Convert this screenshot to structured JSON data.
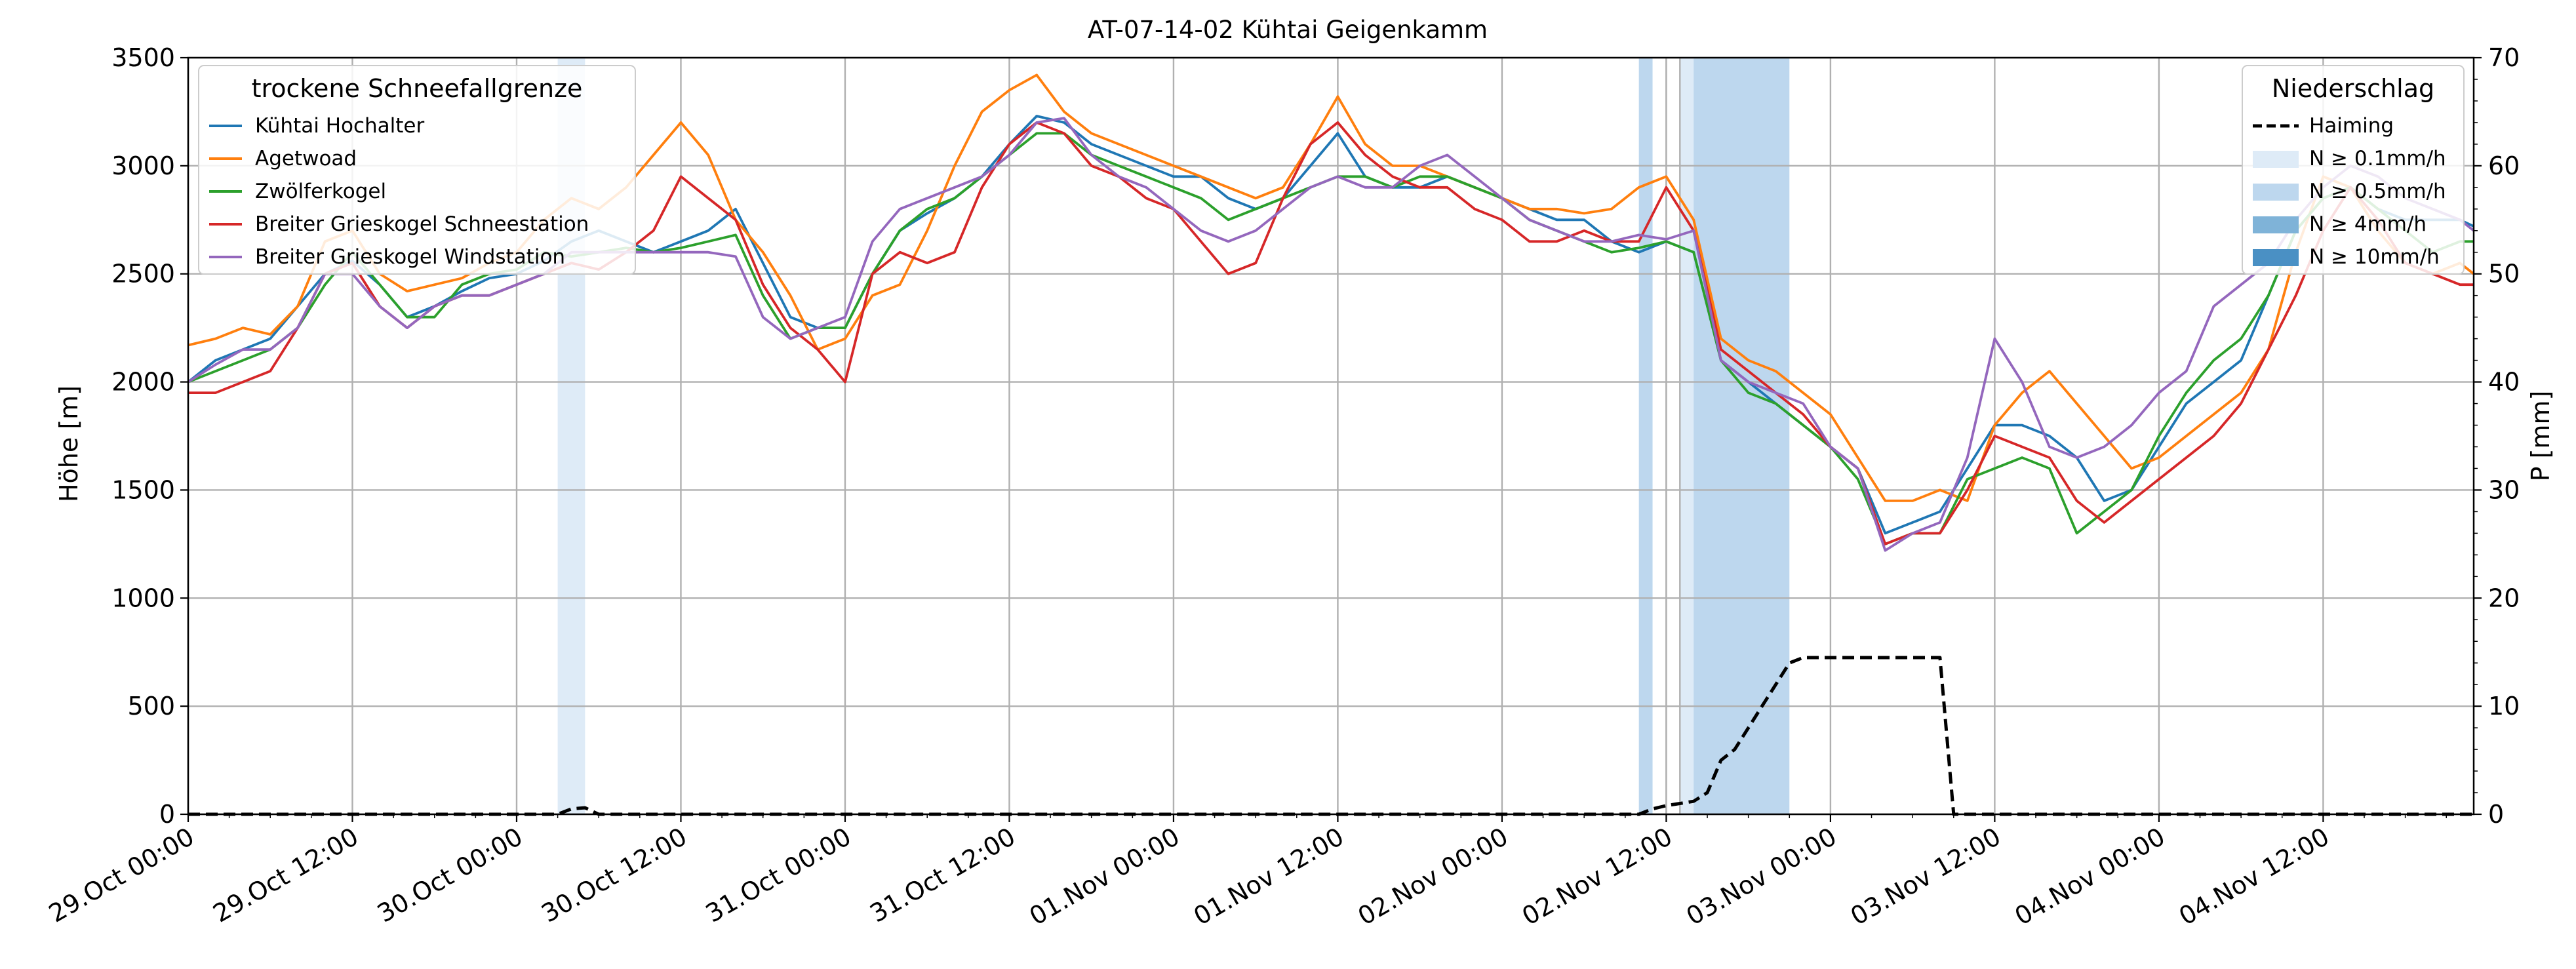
{
  "chart_data": {
    "type": "line",
    "title": "AT-07-14-02 Kühtai Geigenkamm",
    "ylabel": "Höhe [m]",
    "ylabel_right": "P [mm]",
    "xlabel": "",
    "ylim": [
      0,
      3500
    ],
    "ylim_right": [
      0,
      70
    ],
    "x_unit": "hours since 29.Oct 00:00",
    "xlim": [
      0,
      167
    ],
    "x_tick_labels": [
      "29.Oct 00:00",
      "29.Oct 12:00",
      "30.Oct 00:00",
      "30.Oct 12:00",
      "31.Oct 00:00",
      "31.Oct 12:00",
      "01.Nov 00:00",
      "01.Nov 12:00",
      "02.Nov 00:00",
      "02.Nov 12:00",
      "03.Nov 00:00",
      "03.Nov 12:00",
      "04.Nov 00:00",
      "04.Nov 12:00"
    ],
    "y_tick_labels": [
      "0",
      "500",
      "1000",
      "1500",
      "2000",
      "2500",
      "3000",
      "3500"
    ],
    "y_tick_labels_right": [
      "0",
      "10",
      "20",
      "30",
      "40",
      "50",
      "60",
      "70"
    ],
    "legend_left": {
      "title": "trockene Schneefallgrenze",
      "placement": "top-left",
      "entries": [
        "Kühtai Hochalter",
        "Agetwoad",
        "Zwölferkogel",
        "Breiter Grieskogel Schneestation",
        "Breiter Grieskogel Windstation"
      ]
    },
    "legend_right": {
      "title": "Niederschlag",
      "placement": "top-right",
      "entries": [
        "Haiming",
        "N ≥ 0.1mm/h",
        "N ≥ 0.5mm/h",
        "N ≥ 4mm/h",
        "N ≥ 10mm/h"
      ]
    },
    "colors": {
      "Kühtai Hochalter": "#1f77b4",
      "Agetwoad": "#ff7f0e",
      "Zwölferkogel": "#2ca02c",
      "Breiter Grieskogel Schneestation": "#d62728",
      "Breiter Grieskogel Windstation": "#9467bd",
      "Haiming": "#000000",
      "N ≥ 0.1mm/h": "#deebf7",
      "N ≥ 0.5mm/h": "#bdd7ee",
      "N ≥ 4mm/h": "#7fb3d8",
      "N ≥ 10mm/h": "#4a90c4"
    },
    "precip_bands": [
      {
        "start": 27,
        "end": 29,
        "level": "N ≥ 0.1mm/h"
      },
      {
        "start": 106,
        "end": 107,
        "level": "N ≥ 0.5mm/h"
      },
      {
        "start": 109,
        "end": 110,
        "level": "N ≥ 0.1mm/h"
      },
      {
        "start": 110,
        "end": 117,
        "level": "N ≥ 0.5mm/h"
      }
    ],
    "vlines": [
      108,
      109
    ],
    "series": [
      {
        "name": "Kühtai Hochalter",
        "axis": "left",
        "x": [
          0,
          2,
          4,
          6,
          8,
          10,
          12,
          14,
          16,
          18,
          20,
          22,
          24,
          26,
          28,
          30,
          32,
          34,
          36,
          38,
          40,
          42,
          44,
          46,
          48,
          50,
          52,
          54,
          56,
          58,
          60,
          62,
          64,
          66,
          68,
          70,
          72,
          74,
          76,
          78,
          80,
          82,
          84,
          86,
          88,
          90,
          92,
          94,
          96,
          98,
          100,
          102,
          104,
          106,
          108,
          110,
          112,
          114,
          116,
          118,
          120,
          122,
          124,
          126,
          128,
          130,
          132,
          134,
          136,
          138,
          140,
          142,
          144,
          146,
          148,
          150,
          152,
          154,
          156,
          158,
          160,
          162,
          164,
          166,
          167
        ],
        "y": [
          2000,
          2100,
          2150,
          2200,
          2350,
          2500,
          2560,
          2450,
          2300,
          2350,
          2420,
          2480,
          2500,
          2560,
          2650,
          2700,
          2650,
          2600,
          2650,
          2700,
          2800,
          2550,
          2300,
          2250,
          2250,
          2500,
          2700,
          2780,
          2850,
          2950,
          3100,
          3230,
          3200,
          3100,
          3050,
          3000,
          2950,
          2950,
          2850,
          2800,
          2850,
          3000,
          3150,
          2950,
          2900,
          2900,
          2950,
          2900,
          2850,
          2800,
          2750,
          2750,
          2650,
          2600,
          2650,
          2600,
          2100,
          2000,
          1900,
          1800,
          1700,
          1600,
          1300,
          1350,
          1400,
          1600,
          1800,
          1800,
          1750,
          1650,
          1450,
          1500,
          1700,
          1900,
          2000,
          2100,
          2400,
          2700,
          2850,
          2900,
          2800,
          2750,
          2750,
          2750,
          2720
        ]
      },
      {
        "name": "Agetwoad",
        "axis": "left",
        "x": [
          0,
          2,
          4,
          6,
          8,
          10,
          12,
          14,
          16,
          18,
          20,
          22,
          24,
          26,
          28,
          30,
          32,
          34,
          36,
          38,
          40,
          42,
          44,
          46,
          48,
          50,
          52,
          54,
          56,
          58,
          60,
          62,
          64,
          66,
          68,
          70,
          72,
          74,
          76,
          78,
          80,
          82,
          84,
          86,
          88,
          90,
          92,
          94,
          96,
          98,
          100,
          102,
          104,
          106,
          108,
          110,
          112,
          114,
          116,
          118,
          120,
          122,
          124,
          126,
          128,
          130,
          132,
          134,
          136,
          138,
          140,
          142,
          144,
          146,
          148,
          150,
          152,
          154,
          156,
          158,
          160,
          162,
          164,
          166,
          167
        ],
        "y": [
          2170,
          2200,
          2250,
          2220,
          2350,
          2650,
          2700,
          2500,
          2420,
          2450,
          2480,
          2550,
          2600,
          2750,
          2850,
          2800,
          2900,
          3050,
          3200,
          3050,
          2750,
          2600,
          2400,
          2150,
          2200,
          2400,
          2450,
          2700,
          3000,
          3250,
          3350,
          3420,
          3250,
          3150,
          3100,
          3050,
          3000,
          2950,
          2900,
          2850,
          2900,
          3100,
          3320,
          3100,
          3000,
          3000,
          2950,
          2900,
          2850,
          2800,
          2800,
          2780,
          2800,
          2900,
          2950,
          2750,
          2200,
          2100,
          2050,
          1950,
          1850,
          1650,
          1450,
          1450,
          1500,
          1450,
          1800,
          1950,
          2050,
          1900,
          1750,
          1600,
          1650,
          1750,
          1850,
          1950,
          2150,
          2600,
          2950,
          2900,
          2700,
          2550,
          2500,
          2550,
          2500
        ]
      },
      {
        "name": "Zwölferkogel",
        "axis": "left",
        "x": [
          0,
          2,
          4,
          6,
          8,
          10,
          12,
          14,
          16,
          18,
          20,
          22,
          24,
          26,
          28,
          30,
          32,
          34,
          36,
          38,
          40,
          42,
          44,
          46,
          48,
          50,
          52,
          54,
          56,
          58,
          60,
          62,
          64,
          66,
          68,
          70,
          72,
          74,
          76,
          78,
          80,
          82,
          84,
          86,
          88,
          90,
          92,
          94,
          96,
          98,
          100,
          102,
          104,
          106,
          108,
          110,
          112,
          114,
          116,
          118,
          120,
          122,
          124,
          126,
          128,
          130,
          132,
          134,
          136,
          138,
          140,
          142,
          144,
          146,
          148,
          150,
          152,
          154,
          156,
          158,
          160,
          162,
          164,
          166,
          167
        ],
        "y": [
          2000,
          2050,
          2100,
          2150,
          2250,
          2450,
          2600,
          2450,
          2300,
          2300,
          2450,
          2500,
          2520,
          2600,
          2580,
          2600,
          2620,
          2600,
          2620,
          2650,
          2680,
          2400,
          2200,
          2250,
          2250,
          2500,
          2700,
          2800,
          2850,
          2950,
          3050,
          3150,
          3150,
          3050,
          3000,
          2950,
          2900,
          2850,
          2750,
          2800,
          2850,
          2900,
          2950,
          2950,
          2900,
          2950,
          2950,
          2900,
          2850,
          2750,
          2700,
          2650,
          2600,
          2620,
          2650,
          2600,
          2100,
          1950,
          1900,
          1800,
          1700,
          1550,
          1250,
          1300,
          1300,
          1550,
          1600,
          1650,
          1600,
          1300,
          1400,
          1500,
          1750,
          1950,
          2100,
          2200,
          2400,
          2700,
          2850,
          2900,
          2800,
          2700,
          2600,
          2650,
          2650
        ]
      },
      {
        "name": "Breiter Grieskogel Schneestation",
        "axis": "left",
        "x": [
          0,
          2,
          4,
          6,
          8,
          10,
          12,
          14,
          16,
          18,
          20,
          22,
          24,
          26,
          28,
          30,
          32,
          34,
          36,
          38,
          40,
          42,
          44,
          46,
          48,
          50,
          52,
          54,
          56,
          58,
          60,
          62,
          64,
          66,
          68,
          70,
          72,
          74,
          76,
          78,
          80,
          82,
          84,
          86,
          88,
          90,
          92,
          94,
          96,
          98,
          100,
          102,
          104,
          106,
          108,
          110,
          112,
          114,
          116,
          118,
          120,
          122,
          124,
          126,
          128,
          130,
          132,
          134,
          136,
          138,
          140,
          142,
          144,
          146,
          148,
          150,
          152,
          154,
          156,
          158,
          160,
          162,
          164,
          166,
          167
        ],
        "y": [
          1950,
          1950,
          2000,
          2050,
          2250,
          2500,
          2550,
          2350,
          2250,
          2350,
          2400,
          2400,
          2450,
          2500,
          2550,
          2520,
          2600,
          2700,
          2950,
          2850,
          2750,
          2450,
          2250,
          2150,
          2000,
          2500,
          2600,
          2550,
          2600,
          2900,
          3100,
          3200,
          3150,
          3000,
          2950,
          2850,
          2800,
          2650,
          2500,
          2550,
          2850,
          3100,
          3200,
          3050,
          2950,
          2900,
          2900,
          2800,
          2750,
          2650,
          2650,
          2700,
          2650,
          2650,
          2900,
          2700,
          2150,
          2050,
          1950,
          1850,
          1700,
          1600,
          1250,
          1300,
          1300,
          1500,
          1750,
          1700,
          1650,
          1450,
          1350,
          1450,
          1550,
          1650,
          1750,
          1900,
          2150,
          2400,
          2700,
          2900,
          2750,
          2550,
          2500,
          2450,
          2450
        ]
      },
      {
        "name": "Breiter Grieskogel Windstation",
        "axis": "left",
        "x": [
          0,
          2,
          4,
          6,
          8,
          10,
          12,
          14,
          16,
          18,
          20,
          22,
          24,
          26,
          28,
          30,
          32,
          34,
          36,
          38,
          40,
          42,
          44,
          46,
          48,
          50,
          52,
          54,
          56,
          58,
          60,
          62,
          64,
          66,
          68,
          70,
          72,
          74,
          76,
          78,
          80,
          82,
          84,
          86,
          88,
          90,
          92,
          94,
          96,
          98,
          100,
          102,
          104,
          106,
          108,
          110,
          112,
          114,
          116,
          118,
          120,
          122,
          124,
          126,
          128,
          130,
          132,
          134,
          136,
          138,
          140,
          142,
          144,
          146,
          148,
          150,
          152,
          154,
          156,
          158,
          160,
          162,
          164,
          166,
          167
        ],
        "y": [
          2000,
          2080,
          2150,
          2150,
          2250,
          2500,
          2500,
          2350,
          2250,
          2350,
          2400,
          2400,
          2450,
          2500,
          2600,
          2600,
          2600,
          2600,
          2600,
          2600,
          2580,
          2300,
          2200,
          2250,
          2300,
          2650,
          2800,
          2850,
          2900,
          2950,
          3050,
          3200,
          3220,
          3050,
          2950,
          2900,
          2800,
          2700,
          2650,
          2700,
          2800,
          2900,
          2950,
          2900,
          2900,
          3000,
          3050,
          2950,
          2850,
          2750,
          2700,
          2650,
          2650,
          2680,
          2660,
          2700,
          2100,
          2000,
          1950,
          1900,
          1700,
          1600,
          1220,
          1300,
          1350,
          1650,
          2200,
          2000,
          1700,
          1650,
          1700,
          1800,
          1950,
          2050,
          2350,
          2450,
          2550,
          2750,
          2900,
          3000,
          2950,
          2850,
          2800,
          2750,
          2700
        ]
      },
      {
        "name": "Haiming",
        "axis": "right",
        "style": "dashed",
        "x": [
          0,
          27,
          28,
          29,
          30,
          106,
          107,
          108,
          109,
          110,
          111,
          112,
          113,
          114,
          115,
          116,
          117,
          118,
          119,
          120,
          121,
          122,
          123,
          124,
          125,
          126,
          127,
          128,
          129,
          167
        ],
        "y": [
          0,
          0,
          0.5,
          0.6,
          0,
          0,
          0.5,
          0.8,
          1,
          1.2,
          2,
          5,
          6,
          8,
          10,
          12,
          14,
          14.5,
          14.5,
          14.5,
          14.5,
          14.5,
          14.5,
          14.5,
          14.5,
          14.5,
          14.5,
          14.5,
          0,
          0
        ]
      }
    ]
  }
}
